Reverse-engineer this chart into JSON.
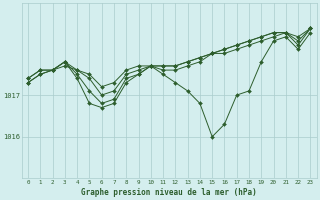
{
  "background_color": "#d4eeee",
  "grid_color": "#aacccc",
  "line_color": "#2d5e2d",
  "marker_color": "#2d5e2d",
  "text_color": "#2d5e2d",
  "xlabel": "Graphe pression niveau de la mer (hPa)",
  "x_ticks": [
    0,
    1,
    2,
    3,
    4,
    5,
    6,
    7,
    8,
    9,
    10,
    11,
    12,
    13,
    14,
    15,
    16,
    17,
    18,
    19,
    20,
    21,
    22,
    23
  ],
  "ylim": [
    1015.0,
    1019.2
  ],
  "yticks": [
    1016,
    1017
  ],
  "series": [
    [
      1017.4,
      1017.6,
      1017.6,
      1017.7,
      1017.6,
      1017.5,
      1017.2,
      1017.3,
      1017.6,
      1017.7,
      1017.7,
      1017.7,
      1017.7,
      1017.8,
      1017.9,
      1018.0,
      1018.1,
      1018.2,
      1018.3,
      1018.4,
      1018.5,
      1018.5,
      1018.4,
      1018.6
    ],
    [
      1017.4,
      1017.6,
      1017.6,
      1017.8,
      1017.6,
      1017.4,
      1017.0,
      1017.1,
      1017.5,
      1017.6,
      1017.7,
      1017.7,
      1017.7,
      1017.8,
      1017.9,
      1018.0,
      1018.1,
      1018.2,
      1018.3,
      1018.4,
      1018.5,
      1018.5,
      1018.3,
      1018.6
    ],
    [
      1017.3,
      1017.5,
      1017.6,
      1017.8,
      1017.5,
      1017.1,
      1016.8,
      1016.9,
      1017.4,
      1017.5,
      1017.7,
      1017.6,
      1017.6,
      1017.7,
      1017.8,
      1018.0,
      1018.0,
      1018.1,
      1018.2,
      1018.3,
      1018.4,
      1018.5,
      1018.2,
      1018.6
    ],
    [
      1017.3,
      1017.5,
      1017.6,
      1017.8,
      1017.4,
      1016.8,
      1016.7,
      1016.8,
      1017.3,
      1017.5,
      1017.7,
      1017.5,
      1017.3,
      1017.1,
      1016.8,
      1016.0,
      1016.3,
      1017.0,
      1017.1,
      1017.8,
      1018.3,
      1018.4,
      1018.1,
      1018.5
    ]
  ]
}
